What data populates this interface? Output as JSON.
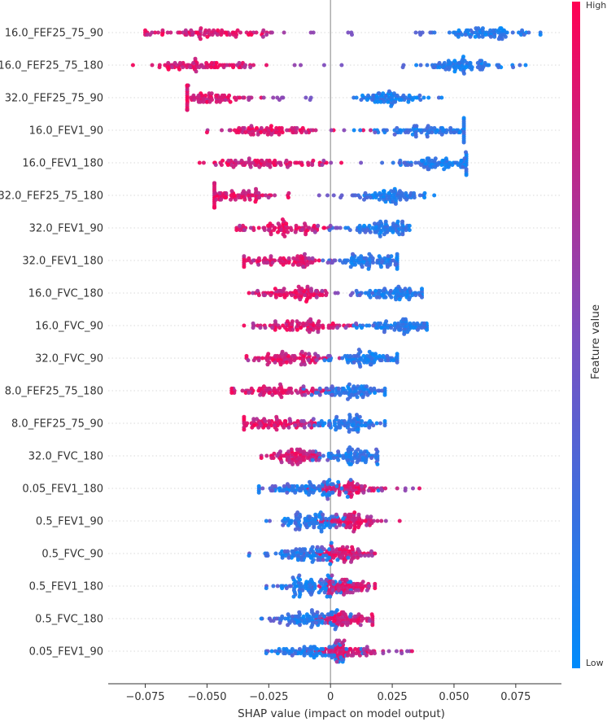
{
  "chart_data": {
    "type": "beeswarm",
    "title": "",
    "xlabel": "SHAP value (impact on model output)",
    "xlim": [
      -0.09,
      0.0935
    ],
    "xticks": [
      -0.075,
      -0.05,
      -0.025,
      0,
      0.025,
      0.05,
      0.075
    ],
    "xtick_labels": [
      "−0.075",
      "−0.050",
      "−0.025",
      "0",
      "0.025",
      "0.050",
      "0.075"
    ],
    "colorbar": {
      "title": "Feature value",
      "high_label": "High",
      "low_label": "Low",
      "high_color": "#ff0052",
      "low_color": "#008bfb"
    },
    "features": [
      {
        "name": "16.0_FEF25_75_90",
        "min": -0.075,
        "max": 0.085,
        "hi_center": -0.05,
        "hi_spread": 0.012,
        "lo_center": 0.062,
        "lo_spread": 0.01
      },
      {
        "name": "16.0_FEF25_75_180",
        "min": -0.08,
        "max": 0.079,
        "hi_center": -0.053,
        "hi_spread": 0.011,
        "lo_center": 0.053,
        "lo_spread": 0.008
      },
      {
        "name": "32.0_FEF25_75_90",
        "min": -0.058,
        "max": 0.045,
        "hi_center": -0.05,
        "hi_spread": 0.009,
        "lo_center": 0.024,
        "lo_spread": 0.006
      },
      {
        "name": "16.0_FEV1_90",
        "min": -0.05,
        "max": 0.054,
        "hi_center": -0.022,
        "hi_spread": 0.012,
        "lo_center": 0.042,
        "lo_spread": 0.012
      },
      {
        "name": "16.0_FEV1_180",
        "min": -0.053,
        "max": 0.055,
        "hi_center": -0.026,
        "hi_spread": 0.013,
        "lo_center": 0.045,
        "lo_spread": 0.008
      },
      {
        "name": "32.0_FEF25_75_180",
        "min": -0.047,
        "max": 0.042,
        "hi_center": -0.038,
        "hi_spread": 0.012,
        "lo_center": 0.024,
        "lo_spread": 0.006
      },
      {
        "name": "32.0_FEV1_90",
        "min": -0.038,
        "max": 0.032,
        "hi_center": -0.018,
        "hi_spread": 0.01,
        "lo_center": 0.022,
        "lo_spread": 0.007
      },
      {
        "name": "32.0_FEV1_180",
        "min": -0.035,
        "max": 0.027,
        "hi_center": -0.018,
        "hi_spread": 0.009,
        "lo_center": 0.016,
        "lo_spread": 0.008
      },
      {
        "name": "16.0_FVC_180",
        "min": -0.033,
        "max": 0.037,
        "hi_center": -0.015,
        "hi_spread": 0.008,
        "lo_center": 0.025,
        "lo_spread": 0.008
      },
      {
        "name": "16.0_FVC_90",
        "min": -0.035,
        "max": 0.039,
        "hi_center": -0.012,
        "hi_spread": 0.009,
        "lo_center": 0.028,
        "lo_spread": 0.008
      },
      {
        "name": "32.0_FVC_90",
        "min": -0.034,
        "max": 0.027,
        "hi_center": -0.016,
        "hi_spread": 0.009,
        "lo_center": 0.015,
        "lo_spread": 0.008
      },
      {
        "name": "8.0_FEF25_75_180",
        "min": -0.04,
        "max": 0.022,
        "hi_center": -0.022,
        "hi_spread": 0.01,
        "lo_center": 0.01,
        "lo_spread": 0.008
      },
      {
        "name": "8.0_FEF25_75_90",
        "min": -0.035,
        "max": 0.022,
        "hi_center": -0.023,
        "hi_spread": 0.008,
        "lo_center": 0.008,
        "lo_spread": 0.007
      },
      {
        "name": "32.0_FVC_180",
        "min": -0.028,
        "max": 0.019,
        "hi_center": -0.013,
        "hi_spread": 0.006,
        "lo_center": 0.008,
        "lo_spread": 0.006
      },
      {
        "name": "0.05_FEV1_180",
        "min": -0.029,
        "max": 0.036,
        "hi_center": 0.007,
        "hi_spread": 0.008,
        "lo_center": -0.007,
        "lo_spread": 0.01
      },
      {
        "name": "0.5_FEV1_90",
        "min": -0.026,
        "max": 0.028,
        "hi_center": 0.008,
        "hi_spread": 0.006,
        "lo_center": -0.008,
        "lo_spread": 0.007
      },
      {
        "name": "0.5_FVC_90",
        "min": -0.033,
        "max": 0.018,
        "hi_center": 0.005,
        "hi_spread": 0.006,
        "lo_center": -0.01,
        "lo_spread": 0.008
      },
      {
        "name": "0.5_FEV1_180",
        "min": -0.026,
        "max": 0.018,
        "hi_center": 0.005,
        "hi_spread": 0.006,
        "lo_center": -0.009,
        "lo_spread": 0.007
      },
      {
        "name": "0.5_FVC_180",
        "min": -0.028,
        "max": 0.017,
        "hi_center": 0.005,
        "hi_spread": 0.006,
        "lo_center": -0.009,
        "lo_spread": 0.007
      },
      {
        "name": "0.05_FEV1_90",
        "min": -0.026,
        "max": 0.033,
        "hi_center": 0.006,
        "hi_spread": 0.007,
        "lo_center": -0.008,
        "lo_spread": 0.008
      }
    ]
  }
}
